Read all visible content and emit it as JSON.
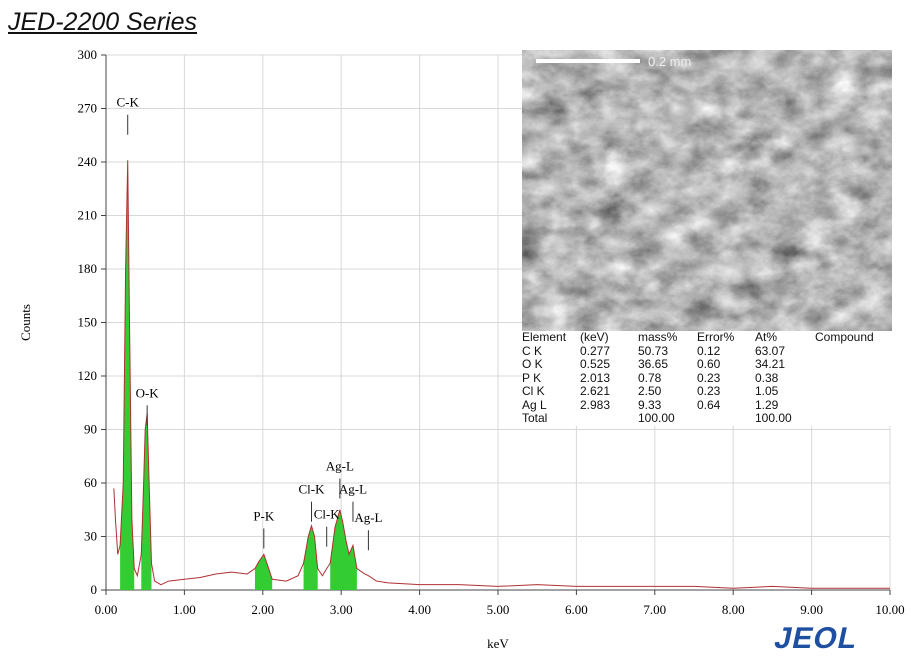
{
  "chart_data": {
    "type": "area",
    "title": "JED-2200 Series",
    "x_label": "keV",
    "y_label": "Counts",
    "xlim": [
      0,
      10
    ],
    "ylim": [
      0,
      300
    ],
    "xticks": [
      {
        "value": 0,
        "label": "0.00"
      },
      {
        "value": 1,
        "label": "1.00"
      },
      {
        "value": 2,
        "label": "2.00"
      },
      {
        "value": 3,
        "label": "3.00"
      },
      {
        "value": 4,
        "label": "4.00"
      },
      {
        "value": 5,
        "label": "5.00"
      },
      {
        "value": 6,
        "label": "6.00"
      },
      {
        "value": 7,
        "label": "7.00"
      },
      {
        "value": 8,
        "label": "8.00"
      },
      {
        "value": 9,
        "label": "9.00"
      },
      {
        "value": 10,
        "label": "10.00"
      }
    ],
    "yticks": [
      0,
      30,
      60,
      90,
      120,
      150,
      180,
      210,
      240,
      270,
      300
    ],
    "grid": true,
    "series": [
      {
        "kind": "line",
        "color": "#b03030",
        "x": [
          0.1,
          0.12,
          0.15,
          0.18,
          0.22,
          0.25,
          0.277,
          0.3,
          0.33,
          0.36,
          0.4,
          0.45,
          0.48,
          0.5,
          0.525,
          0.55,
          0.58,
          0.62,
          0.7,
          0.8,
          1.0,
          1.2,
          1.4,
          1.6,
          1.8,
          1.9,
          1.95,
          2.013,
          2.06,
          2.12,
          2.3,
          2.45,
          2.52,
          2.58,
          2.621,
          2.66,
          2.7,
          2.76,
          2.815,
          2.86,
          2.92,
          2.983,
          3.02,
          3.06,
          3.1,
          3.15,
          3.2,
          3.3,
          3.347,
          3.45,
          3.6,
          4.0,
          4.5,
          5.0,
          5.5,
          6.0,
          6.5,
          7.0,
          7.5,
          8.0,
          8.5,
          9.0,
          9.5,
          10.0
        ],
        "values": [
          57,
          40,
          20,
          25,
          60,
          180,
          241,
          150,
          40,
          12,
          8,
          20,
          60,
          90,
          99,
          60,
          15,
          5,
          3,
          5,
          6,
          7,
          9,
          10,
          9,
          12,
          16,
          20,
          14,
          6,
          5,
          8,
          15,
          30,
          36,
          30,
          12,
          8,
          12,
          15,
          35,
          45,
          38,
          28,
          20,
          25,
          12,
          9,
          8,
          5,
          4,
          3,
          3,
          2,
          3,
          2,
          2,
          2,
          2,
          1,
          2,
          1,
          1,
          1
        ]
      },
      {
        "kind": "area",
        "color": "#33cc33",
        "x": [
          0.18,
          0.22,
          0.25,
          0.277,
          0.3,
          0.33,
          0.36,
          0.4,
          0.45,
          0.48,
          0.5,
          0.525,
          0.55,
          0.58,
          1.0,
          1.9,
          1.95,
          2.013,
          2.06,
          2.12,
          2.3,
          2.52,
          2.58,
          2.621,
          2.66,
          2.7,
          2.76,
          2.86,
          2.92,
          2.983,
          3.02,
          3.06,
          3.1,
          3.15,
          3.2
        ],
        "values": [
          25,
          60,
          180,
          241,
          150,
          40,
          12,
          null,
          20,
          60,
          90,
          99,
          60,
          15,
          null,
          12,
          16,
          20,
          14,
          6,
          null,
          15,
          30,
          36,
          30,
          12,
          null,
          15,
          35,
          45,
          38,
          28,
          20,
          25,
          12
        ]
      }
    ],
    "annotations": [
      {
        "text": "C-K",
        "x": 0.277,
        "y": 271
      },
      {
        "text": "O-K",
        "x": 0.525,
        "y": 108
      },
      {
        "text": "P-K",
        "x": 2.013,
        "y": 39
      },
      {
        "text": "Cl-K",
        "x": 2.621,
        "y": 54
      },
      {
        "text": "Cl-K",
        "x": 2.815,
        "y": 40
      },
      {
        "text": "Ag-L",
        "x": 2.983,
        "y": 67
      },
      {
        "text": "Ag-L",
        "x": 3.15,
        "y": 54
      },
      {
        "text": "Ag-L",
        "x": 3.347,
        "y": 38
      }
    ]
  },
  "image": {
    "scale_label": "0.2 mm"
  },
  "table": {
    "header": [
      "Element",
      "(keV)",
      "mass%",
      "Error%",
      "At%",
      "Compound"
    ],
    "rows": [
      [
        "C  K",
        "0.277",
        "50.73",
        "0.12",
        "63.07"
      ],
      [
        "O  K",
        "0.525",
        "36.65",
        "0.60",
        "34.21"
      ],
      [
        "P  K",
        "2.013",
        "0.78",
        "0.23",
        "0.38"
      ],
      [
        "Cl K",
        "2.621",
        "2.50",
        "0.23",
        "1.05"
      ],
      [
        "Ag L",
        "2.983",
        "9.33",
        "0.64",
        "1.29"
      ]
    ],
    "total": {
      "label": "Total",
      "mass": "100.00",
      "at": "100.00"
    }
  },
  "logo": "JEOL"
}
